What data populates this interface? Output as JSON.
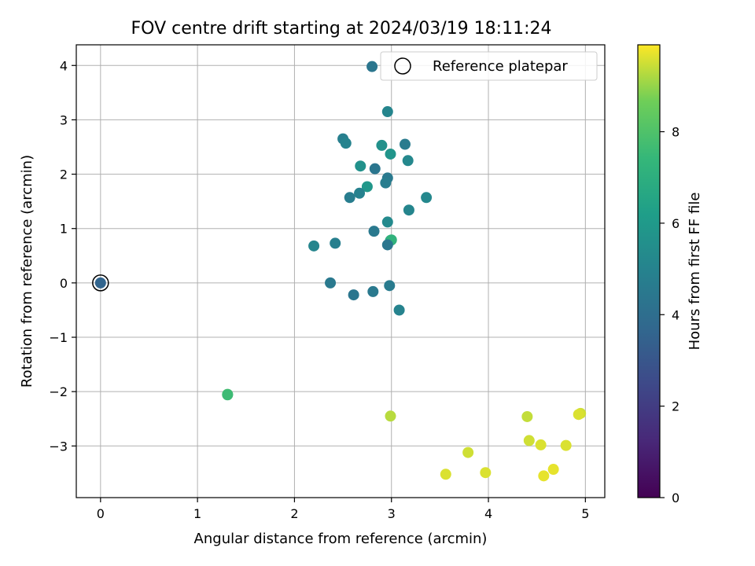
{
  "chart_data": {
    "type": "scatter",
    "title": "FOV centre drift starting at 2024/03/19 18:11:24",
    "xlabel": "Angular distance from reference (arcmin)",
    "ylabel": "Rotation from reference (arcmin)",
    "xlim": [
      -0.25,
      5.2
    ],
    "ylim": [
      -3.95,
      4.38
    ],
    "xticks": [
      0,
      1,
      2,
      3,
      4,
      5
    ],
    "yticks": [
      -3,
      -2,
      -1,
      0,
      1,
      2,
      3,
      4
    ],
    "xtick_labels": [
      "0",
      "1",
      "2",
      "3",
      "4",
      "5"
    ],
    "ytick_labels": [
      "−3",
      "−2",
      "−1",
      "0",
      "1",
      "2",
      "3",
      "4"
    ],
    "grid": true,
    "legend": {
      "placement": "upper right",
      "entries": [
        "Reference platepar"
      ]
    },
    "colormap": "viridis",
    "colorbar": {
      "label": "Hours from first FF file",
      "range": [
        0,
        9.9
      ],
      "ticks": [
        0,
        2,
        4,
        6,
        8
      ],
      "tick_labels": [
        "0",
        "2",
        "4",
        "6",
        "8"
      ]
    },
    "reference_point": {
      "x": 0,
      "y": 0,
      "hours": 3.6
    },
    "points": [
      {
        "x": 2.8,
        "y": 3.98,
        "hours": 4.4
      },
      {
        "x": 2.96,
        "y": 3.15,
        "hours": 5.1
      },
      {
        "x": 2.5,
        "y": 2.65,
        "hours": 4.8
      },
      {
        "x": 2.53,
        "y": 2.57,
        "hours": 5.0
      },
      {
        "x": 2.9,
        "y": 2.53,
        "hours": 5.6
      },
      {
        "x": 3.14,
        "y": 2.55,
        "hours": 4.6
      },
      {
        "x": 2.99,
        "y": 2.37,
        "hours": 5.8
      },
      {
        "x": 3.17,
        "y": 2.25,
        "hours": 5.2
      },
      {
        "x": 2.68,
        "y": 2.15,
        "hours": 5.6
      },
      {
        "x": 2.83,
        "y": 2.1,
        "hours": 4.4
      },
      {
        "x": 2.96,
        "y": 1.93,
        "hours": 4.5
      },
      {
        "x": 2.94,
        "y": 1.84,
        "hours": 4.7
      },
      {
        "x": 2.75,
        "y": 1.77,
        "hours": 5.9
      },
      {
        "x": 2.67,
        "y": 1.65,
        "hours": 4.9
      },
      {
        "x": 2.57,
        "y": 1.57,
        "hours": 4.7
      },
      {
        "x": 3.36,
        "y": 1.57,
        "hours": 5.2
      },
      {
        "x": 3.18,
        "y": 1.34,
        "hours": 5.1
      },
      {
        "x": 2.96,
        "y": 1.12,
        "hours": 5.3
      },
      {
        "x": 2.82,
        "y": 0.95,
        "hours": 4.5
      },
      {
        "x": 2.99,
        "y": 0.78,
        "hours": 6.8
      },
      {
        "x": 3.0,
        "y": 0.79,
        "hours": 7.2
      },
      {
        "x": 2.96,
        "y": 0.7,
        "hours": 4.4
      },
      {
        "x": 2.42,
        "y": 0.73,
        "hours": 4.8
      },
      {
        "x": 2.2,
        "y": 0.68,
        "hours": 5.1
      },
      {
        "x": 2.37,
        "y": 0.0,
        "hours": 4.5
      },
      {
        "x": 2.98,
        "y": -0.05,
        "hours": 4.6
      },
      {
        "x": 2.61,
        "y": -0.22,
        "hours": 4.4
      },
      {
        "x": 2.81,
        "y": -0.16,
        "hours": 4.5
      },
      {
        "x": 3.08,
        "y": -0.5,
        "hours": 5.0
      },
      {
        "x": 1.31,
        "y": -2.05,
        "hours": 7.8
      },
      {
        "x": 1.31,
        "y": -2.06,
        "hours": 7.6
      },
      {
        "x": 2.99,
        "y": -2.45,
        "hours": 9.3
      },
      {
        "x": 4.4,
        "y": -2.46,
        "hours": 9.4
      },
      {
        "x": 4.95,
        "y": -2.4,
        "hours": 9.5
      },
      {
        "x": 4.93,
        "y": -2.42,
        "hours": 9.6
      },
      {
        "x": 4.42,
        "y": -2.9,
        "hours": 9.5
      },
      {
        "x": 4.54,
        "y": -2.98,
        "hours": 9.6
      },
      {
        "x": 4.8,
        "y": -2.99,
        "hours": 9.6
      },
      {
        "x": 3.79,
        "y": -3.12,
        "hours": 9.5
      },
      {
        "x": 3.56,
        "y": -3.52,
        "hours": 9.6
      },
      {
        "x": 3.97,
        "y": -3.49,
        "hours": 9.6
      },
      {
        "x": 4.57,
        "y": -3.55,
        "hours": 9.7
      },
      {
        "x": 4.67,
        "y": -3.43,
        "hours": 9.7
      }
    ]
  }
}
